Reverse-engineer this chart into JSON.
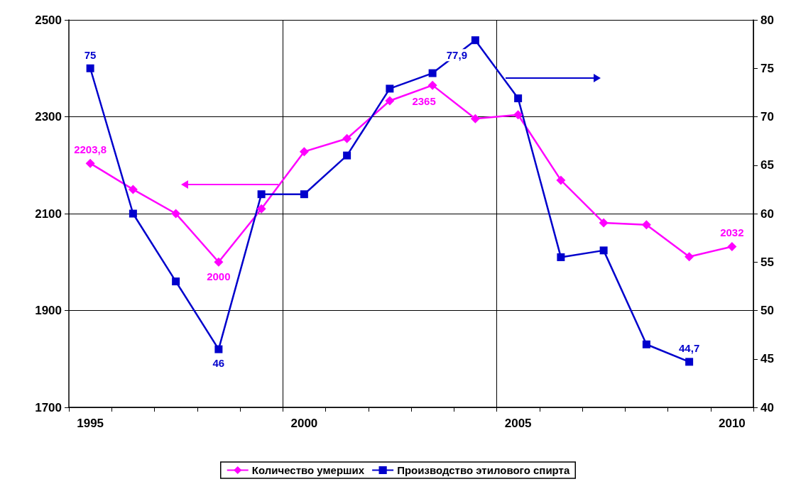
{
  "chart_data": {
    "type": "line",
    "categories": [
      "1995",
      null,
      null,
      null,
      null,
      "2000",
      null,
      null,
      null,
      null,
      "2005",
      null,
      null,
      null,
      null,
      "2010"
    ],
    "series": [
      {
        "name": "Количество умерших",
        "color": "#ff00ff",
        "marker": "diamond",
        "values": [
          2203.8,
          2150,
          2100,
          2000,
          2110,
          2228,
          2255,
          2333,
          2365,
          2296,
          2304,
          2169,
          2081,
          2077,
          2011,
          2032
        ],
        "value_labels": [
          "2203,8",
          null,
          null,
          "2000",
          null,
          null,
          null,
          null,
          "2365",
          null,
          null,
          null,
          null,
          null,
          null,
          "2032"
        ]
      },
      {
        "name": "Производство этилового спирта",
        "color": "#0000cc",
        "marker": "square",
        "axis": "y2",
        "values": [
          75,
          60,
          53,
          46,
          62,
          62,
          66,
          72.9,
          74.5,
          77.9,
          71.9,
          55.5,
          56.2,
          46.5,
          44.7,
          null
        ],
        "value_labels": [
          "75",
          null,
          null,
          "46",
          null,
          null,
          null,
          null,
          null,
          "77,9",
          null,
          null,
          null,
          null,
          "44,7",
          null
        ]
      }
    ],
    "ylim": [
      1700,
      2500
    ],
    "yticks": [
      1700,
      1900,
      2100,
      2300,
      2500
    ],
    "y2lim": [
      40,
      80
    ],
    "y2ticks": [
      40,
      45,
      50,
      55,
      60,
      65,
      70,
      75,
      80
    ],
    "grid": true,
    "legend": "bottom",
    "line_style": "solid"
  }
}
